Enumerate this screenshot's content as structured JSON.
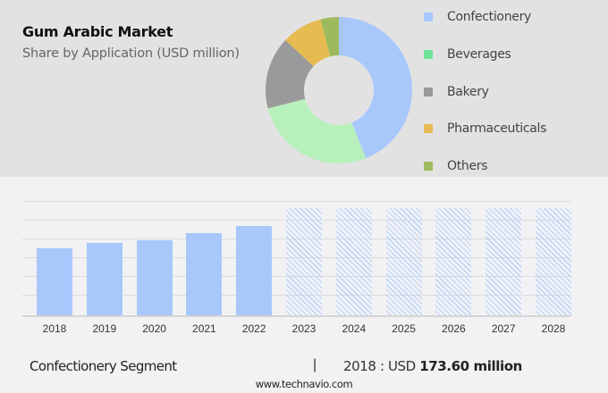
{
  "header": {
    "title": "Gum Arabic Market",
    "subtitle": "Share by Application (USD million)"
  },
  "legend": [
    {
      "label": "Confectionery",
      "color": "#a8c8fc"
    },
    {
      "label": "Beverages",
      "color": "#6fe39a"
    },
    {
      "label": "Bakery",
      "color": "#9a9a9a"
    },
    {
      "label": "Pharmaceuticals",
      "color": "#e6bb52"
    },
    {
      "label": "Others",
      "color": "#9dbb5d"
    }
  ],
  "footer": {
    "segment": "Confectionery Segment",
    "separator": "|",
    "year_prefix": "2018 : USD ",
    "value": "173.60 million",
    "url": "www.technavio.com"
  },
  "chart_data": [
    {
      "type": "pie",
      "title": "Gum Arabic Market",
      "subtitle": "Share by Application (USD million)",
      "donut": true,
      "categories": [
        "Confectionery",
        "Beverages",
        "Bakery",
        "Pharmaceuticals",
        "Others"
      ],
      "values": [
        44,
        27,
        16,
        9,
        4
      ],
      "colors": [
        "#a8c8fc",
        "#b8f0bc",
        "#9a9a9a",
        "#e6bb52",
        "#9dbb5d"
      ],
      "legend_position": "right"
    },
    {
      "type": "bar",
      "title": "Confectionery Segment",
      "categories": [
        "2018",
        "2019",
        "2020",
        "2021",
        "2022",
        "2023",
        "2024",
        "2025",
        "2026",
        "2027",
        "2028"
      ],
      "values": [
        173.6,
        187.5,
        194.5,
        213,
        231,
        null,
        null,
        null,
        null,
        null,
        null
      ],
      "forecast": [
        false,
        false,
        false,
        false,
        false,
        true,
        true,
        true,
        true,
        true,
        true
      ],
      "xlabel": "",
      "ylabel": "",
      "ylim": [
        0,
        296
      ],
      "grid": true,
      "annotation": "2018 : USD 173.60 million"
    }
  ]
}
